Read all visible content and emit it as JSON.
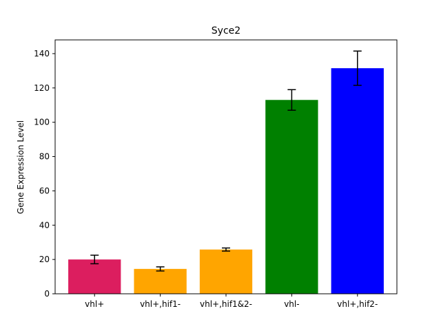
{
  "chart_data": {
    "type": "bar",
    "title": "Syce2",
    "xlabel": "",
    "ylabel": "Gene Expression Level",
    "categories": [
      "vhl+",
      "vhl+,hif1-",
      "vhl+,hif1&2-",
      "vhl-",
      "vhl+,hif2-"
    ],
    "values": [
      20.0,
      14.5,
      25.8,
      113.0,
      131.5
    ],
    "errors": [
      2.5,
      1.2,
      0.9,
      6.0,
      10.0
    ],
    "colors": [
      "#dc1e5f",
      "#ffa500",
      "#ffa500",
      "#008000",
      "#0000ff"
    ],
    "ylim": [
      0,
      148
    ],
    "yticks": [
      0,
      20,
      40,
      60,
      80,
      100,
      120,
      140
    ],
    "grid": false,
    "legend": "none"
  }
}
